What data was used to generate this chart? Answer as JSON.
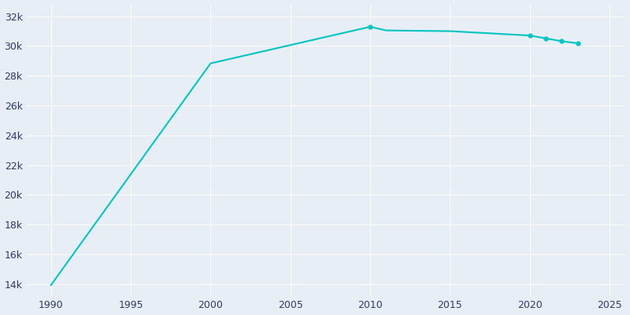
{
  "years": [
    1990,
    2000,
    2010,
    2011,
    2015,
    2020,
    2021,
    2022,
    2023
  ],
  "population": [
    13930,
    28834,
    31295,
    31050,
    31000,
    30708,
    30516,
    30325,
    30184
  ],
  "line_color": "#00c5c5",
  "marker_years": [
    2010,
    2020,
    2021,
    2022,
    2023
  ],
  "bg_color": "#e8eef5",
  "grid_color": "#ffffff",
  "text_color": "#2d3a6b",
  "xlim": [
    1988.5,
    2026
  ],
  "ylim": [
    13200,
    32800
  ],
  "xticks": [
    1990,
    1995,
    2000,
    2005,
    2010,
    2015,
    2020,
    2025
  ],
  "ytick_values": [
    14000,
    16000,
    18000,
    20000,
    22000,
    24000,
    26000,
    28000,
    30000,
    32000
  ]
}
